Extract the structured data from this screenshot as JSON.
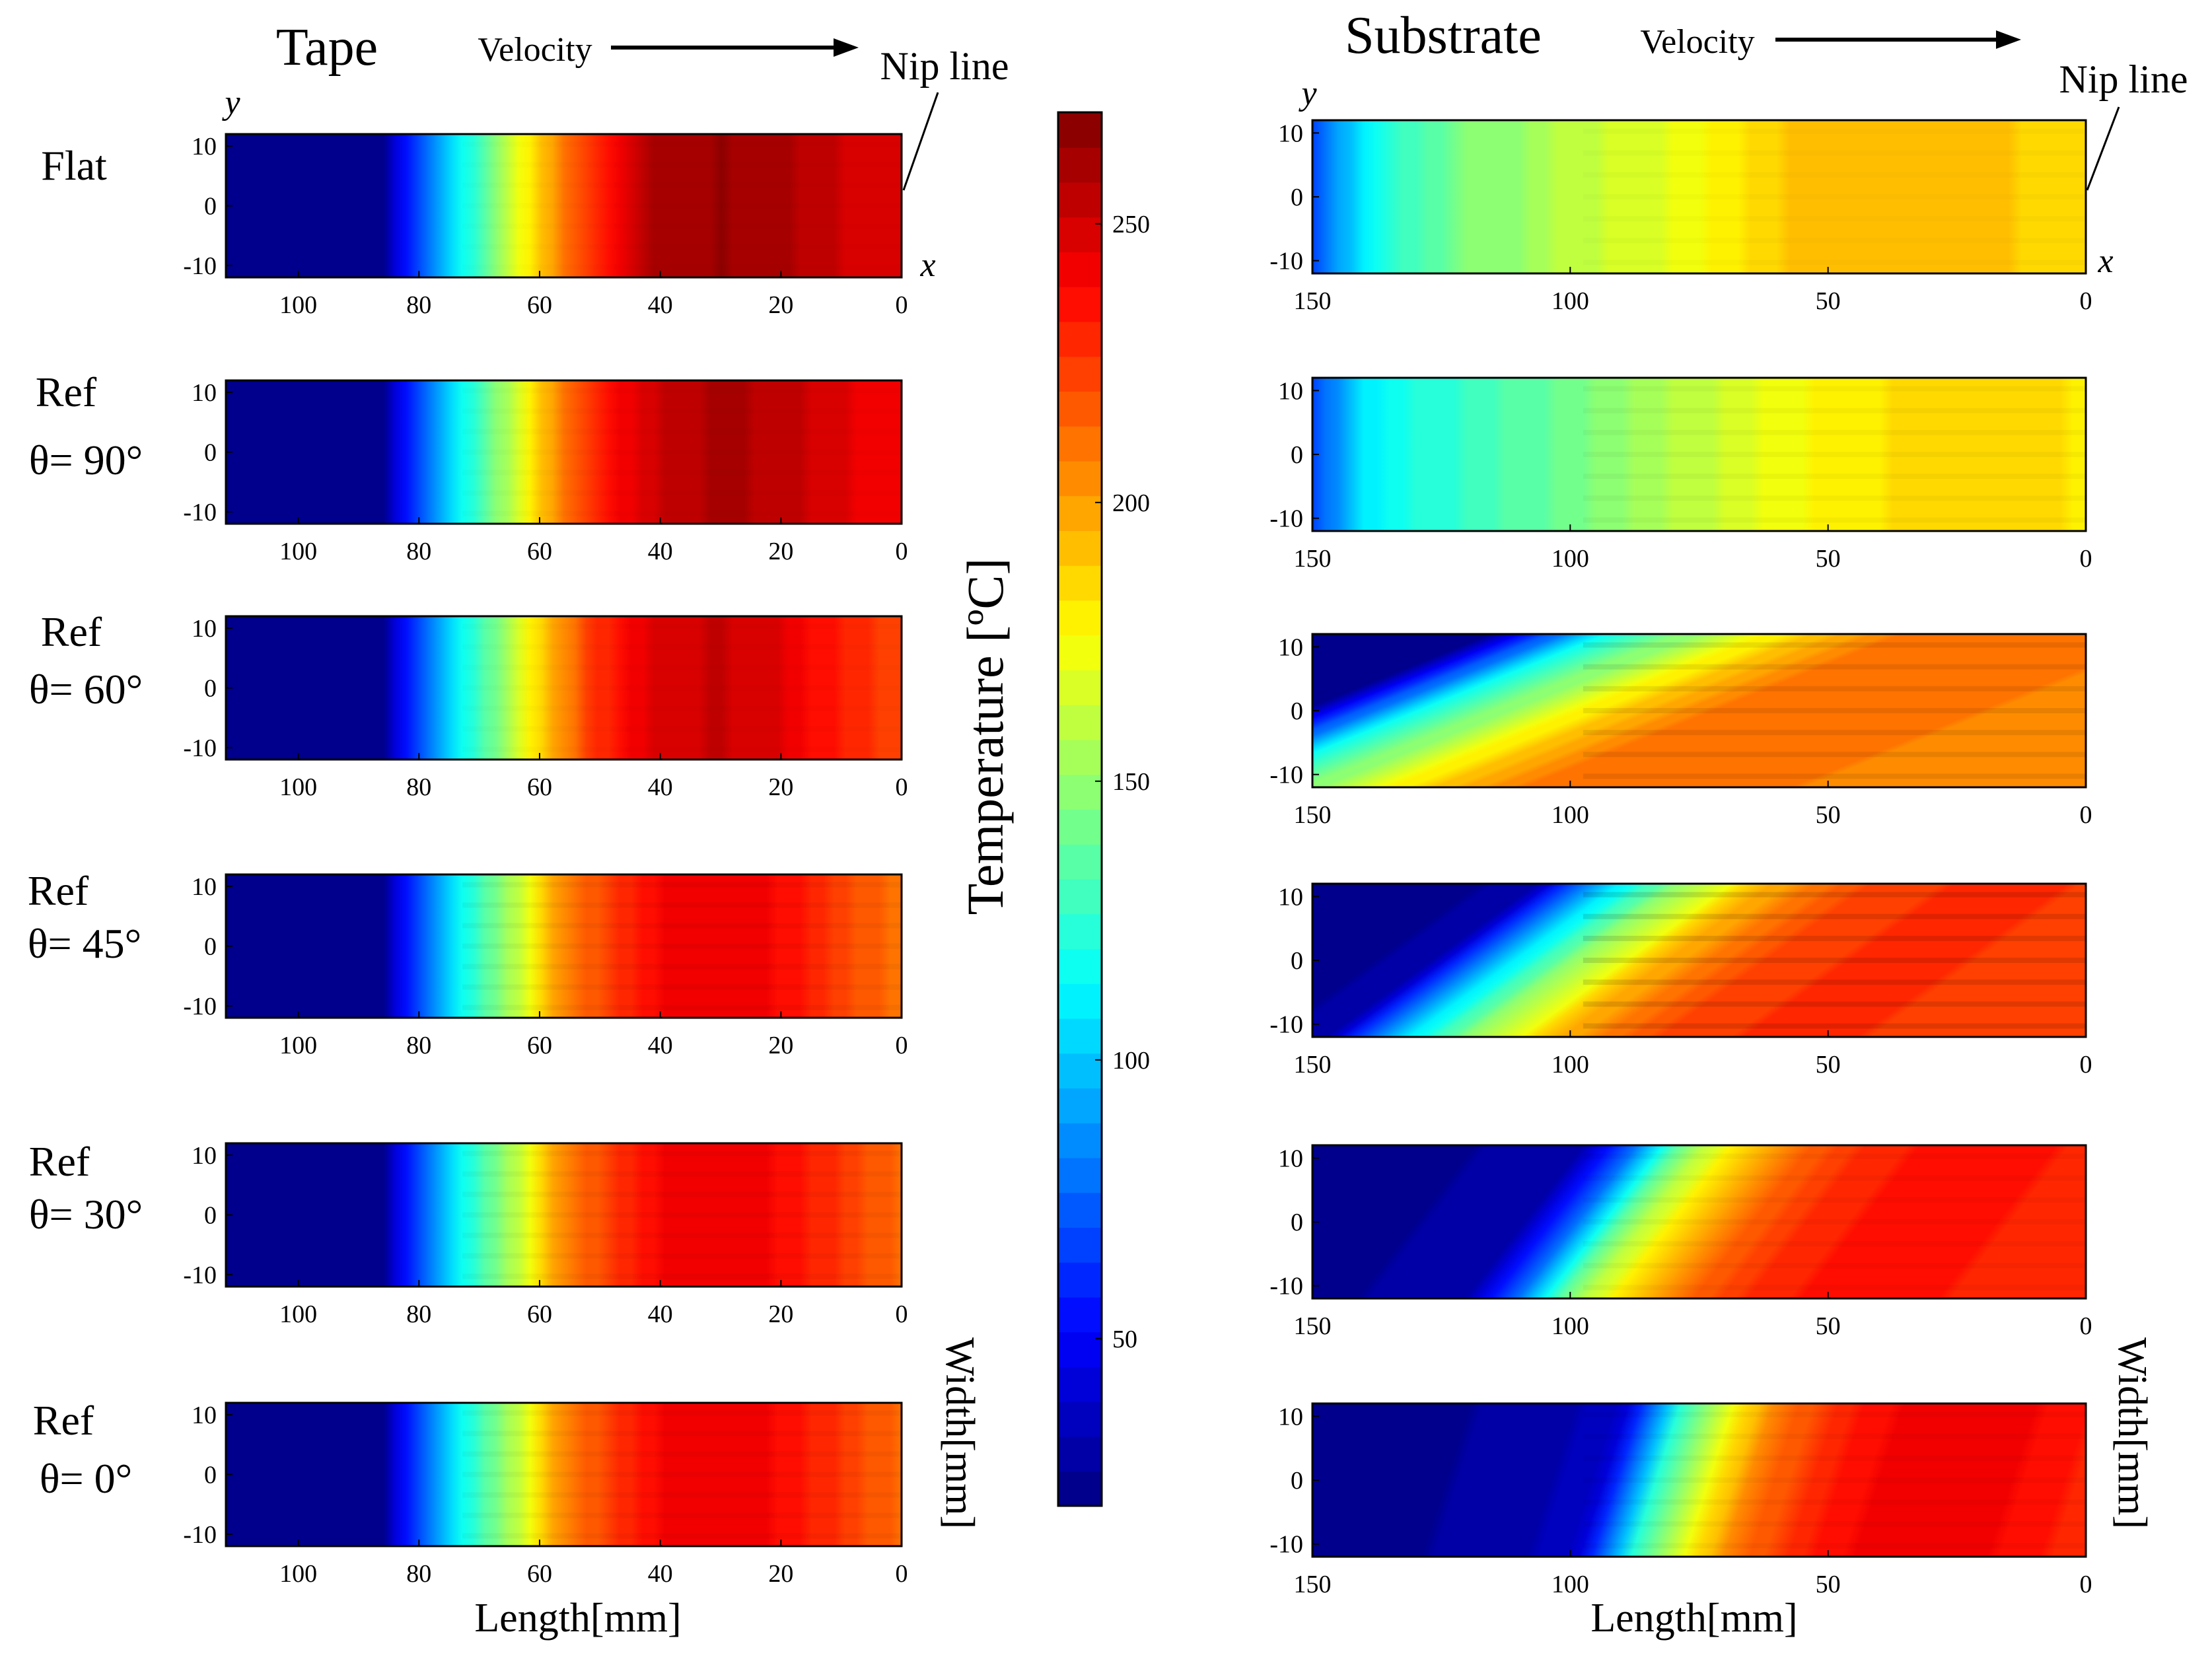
{
  "chart_data": {
    "type": "heatmap",
    "xlabel": "Length[mm]",
    "ylabel": "Width[mm]",
    "colorbar": {
      "label": "Temperature [ºC]",
      "range": [
        20,
        270
      ],
      "ticks": [
        50,
        100,
        150,
        200,
        250
      ],
      "colormap": "jet",
      "levels": 40
    },
    "axis_names": {
      "x": "x",
      "y": "y"
    },
    "velocity_label": "Velocity",
    "nip_label": "Nip line",
    "y_ticks": [
      10,
      0,
      -10
    ],
    "ylim": [
      -12,
      12
    ],
    "row_labels": [
      {
        "line1": "Flat",
        "line2": ""
      },
      {
        "line1": "Ref",
        "line2": "θ= 90°"
      },
      {
        "line1": "Ref",
        "line2": "θ= 60°"
      },
      {
        "line1": "Ref",
        "line2": "θ= 45°"
      },
      {
        "line1": "Ref",
        "line2": "θ= 30°"
      },
      {
        "line1": "Ref",
        "line2": "θ=  0°"
      }
    ],
    "panels": [
      {
        "title": "Tape",
        "xlim": [
          112,
          0
        ],
        "x_ticks": [
          100,
          80,
          60,
          40,
          20,
          0
        ],
        "profile_x": [
          112,
          86,
          82,
          78,
          74,
          70,
          64,
          58,
          52,
          46,
          40,
          30,
          22,
          15,
          8,
          0
        ],
        "rows": [
          {
            "temps": [
              22,
              24,
              55,
              85,
              110,
              130,
              170,
              200,
              225,
              245,
              262,
              264,
              262,
              255,
              250,
              248
            ],
            "stripes": 0.03,
            "tilt": 0
          },
          {
            "temps": [
              22,
              24,
              55,
              85,
              110,
              130,
              165,
              200,
              225,
              242,
              252,
              260,
              256,
              250,
              245,
              240
            ],
            "stripes": 0.05,
            "tilt": 0
          },
          {
            "temps": [
              22,
              24,
              55,
              82,
              108,
              128,
              162,
              198,
              222,
              238,
              248,
              252,
              248,
              238,
              230,
              222
            ],
            "stripes": 0.05,
            "tilt": 0
          },
          {
            "temps": [
              22,
              24,
              55,
              82,
              108,
              128,
              160,
              195,
              215,
              230,
              240,
              245,
              240,
              230,
              220,
              210
            ],
            "stripes": 0.12,
            "tilt": 0
          },
          {
            "temps": [
              22,
              24,
              55,
              82,
              108,
              128,
              160,
              195,
              215,
              230,
              240,
              245,
              240,
              232,
              222,
              212
            ],
            "stripes": 0.1,
            "tilt": 0
          },
          {
            "temps": [
              22,
              24,
              55,
              82,
              108,
              128,
              160,
              195,
              215,
              230,
              240,
              242,
              240,
              232,
              222,
              212
            ],
            "stripes": 0.1,
            "tilt": 0
          }
        ]
      },
      {
        "title": "Substrate",
        "xlim": [
          150,
          0
        ],
        "x_ticks": [
          150,
          100,
          50,
          0
        ],
        "profile_x": [
          150,
          145,
          140,
          130,
          120,
          110,
          100,
          90,
          80,
          70,
          60,
          50,
          40,
          30,
          20,
          10,
          0
        ],
        "rows": [
          {
            "temps": [
              65,
              90,
              112,
              132,
              145,
              150,
              160,
              165,
              170,
              180,
              188,
              192,
              192,
              192,
              190,
              188,
              185
            ],
            "stripes": 0.06,
            "tilt": 0
          },
          {
            "temps": [
              65,
              88,
              108,
              120,
              128,
              135,
              142,
              150,
              158,
              165,
              172,
              178,
              182,
              184,
              184,
              183,
              182
            ],
            "stripes": 0.1,
            "tilt": 0
          },
          {
            "temps": [
              22,
              22,
              22,
              22,
              24,
              70,
              115,
              140,
              160,
              182,
              198,
              208,
              210,
              212,
              212,
              210,
              205
            ],
            "stripes": 0.25,
            "tilt": 20
          },
          {
            "temps": [
              22,
              22,
              22,
              24,
              26,
              30,
              85,
              130,
              160,
              190,
              210,
              220,
              225,
              228,
              228,
              225,
              220
            ],
            "stripes": 0.35,
            "tilt": 12
          },
          {
            "temps": [
              22,
              22,
              22,
              24,
              26,
              28,
              30,
              80,
              150,
              185,
              210,
              225,
              232,
              235,
              235,
              232,
              230
            ],
            "stripes": 0.1,
            "tilt": 7
          },
          {
            "temps": [
              22,
              22,
              22,
              24,
              26,
              28,
              30,
              40,
              120,
              175,
              210,
              228,
              238,
              242,
              242,
              238,
              232
            ],
            "stripes": 0.1,
            "tilt": 3
          }
        ]
      }
    ]
  }
}
